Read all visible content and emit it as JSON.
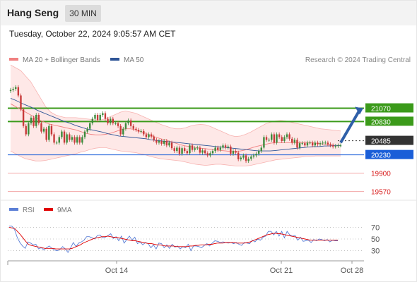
{
  "header": {
    "instrument": "Hang Seng",
    "timeframe": "30 MIN",
    "timestamp": "Tuesday, October 22, 2024 9:05:57 AM CET"
  },
  "legend": {
    "ma20_label": "MA 20 + Bollinger Bands",
    "ma20_color": "#f08080",
    "ma50_label": "MA 50",
    "ma50_color": "#2f5597",
    "copyright": "Research © 2024 Trading Central"
  },
  "rsi_legend": {
    "rsi_label": "RSI",
    "rsi_color": "#5b7fd6",
    "ma_label": "9MA",
    "ma_color": "#e00000"
  },
  "colors": {
    "resistance": "#3b9a1a",
    "pivot": "#1a5ed8",
    "support": "#d81e1e",
    "current": "#333333",
    "candle_up": "#3b8a3b",
    "candle_down": "#c83a3a"
  },
  "chart_data": [
    {
      "type": "candlestick",
      "instrument": "Hang Seng",
      "timeframe": "30 MIN",
      "x_tick_labels": [
        "Oct 14",
        "Oct 21",
        "Oct 28"
      ],
      "ylim": [
        19400,
        21750
      ],
      "close": [
        21400,
        21420,
        21450,
        21300,
        21050,
        20750,
        20600,
        20800,
        20900,
        20750,
        20950,
        20800,
        20650,
        20700,
        20500,
        20750,
        20600,
        20450,
        20450,
        20550,
        20650,
        20450,
        20600,
        20500,
        20550,
        20450,
        20550,
        20450,
        20550,
        20650,
        20700,
        20800,
        20880,
        20950,
        20860,
        20950,
        20980,
        20880,
        20800,
        20880,
        20800,
        20800,
        20750,
        20600,
        20700,
        20800,
        20850,
        20750,
        20700,
        20680,
        20650,
        20660,
        20600,
        20550,
        20600,
        20560,
        20500,
        20450,
        20480,
        20430,
        20480,
        20400,
        20450,
        20350,
        20300,
        20360,
        20250,
        20350,
        20300,
        20260,
        20400,
        20320,
        20350,
        20360,
        20270,
        20310,
        20260,
        20220,
        20260,
        20300,
        20360,
        20320,
        20360,
        20400,
        20360,
        20380,
        20250,
        20300,
        20270,
        20150,
        20180,
        20220,
        20120,
        20160,
        20200,
        20220,
        20250,
        20300,
        20360,
        20550,
        20500,
        20500,
        20600,
        20450,
        20600,
        20550,
        20480,
        20550,
        20600,
        20520,
        20450,
        20500,
        20360,
        20440,
        20440,
        20400,
        20450,
        20450,
        20400,
        20450,
        20420,
        20440,
        20450,
        20450,
        20420,
        20400,
        20380,
        20390,
        20400,
        20400
      ],
      "ma20": [
        21150,
        21100,
        21050,
        21000,
        20950,
        20900,
        20850,
        20810,
        20780,
        20760,
        20740,
        20720,
        20700,
        20680,
        20650,
        20620,
        20600,
        20590,
        20590,
        20600,
        20620,
        20650,
        20680,
        20700,
        20700,
        20680,
        20650,
        20620,
        20580,
        20550,
        20520,
        20500,
        20470,
        20440,
        20410,
        20390,
        20380,
        20360,
        20350,
        20340,
        20330,
        20320,
        20310,
        20300,
        20290,
        20290,
        20300,
        20320,
        20350,
        20380,
        20400,
        20420,
        20440,
        20450,
        20450,
        20450,
        20450,
        20450,
        20450,
        20450,
        20450,
        20440,
        20430,
        20420,
        20410,
        20400,
        20400
      ],
      "ma50": [
        21250,
        21210,
        21160,
        21120,
        21080,
        21030,
        20990,
        20950,
        20910,
        20870,
        20830,
        20800,
        20760,
        20730,
        20700,
        20680,
        20660,
        20640,
        20610,
        20590,
        20570,
        20560,
        20550,
        20540,
        20530,
        20520,
        20500,
        20490,
        20480,
        20470,
        20460,
        20450,
        20440,
        20430,
        20420,
        20410,
        20400,
        20390,
        20380,
        20370,
        20360,
        20350,
        20340,
        20330,
        20320,
        20310,
        20300,
        20300,
        20300,
        20310,
        20320,
        20330,
        20340,
        20350,
        20360,
        20370,
        20380,
        20380,
        20390,
        20390,
        20400,
        20400
      ],
      "bb_upper": [
        21850,
        21800,
        21750,
        21650,
        21550,
        21400,
        21250,
        21100,
        21000,
        20950,
        20920,
        20900,
        20900,
        20900,
        20890,
        20880,
        20870,
        20860,
        20860,
        20880,
        20920,
        20960,
        21000,
        21020,
        21000,
        20980,
        20940,
        20900,
        20860,
        20820,
        20780,
        20750,
        20720,
        20700,
        20700,
        20720,
        20750,
        20770,
        20780,
        20770,
        20740,
        20700,
        20660,
        20620,
        20580,
        20560,
        20570,
        20600,
        20640,
        20690,
        20740,
        20790,
        20820,
        20840,
        20850,
        20840,
        20820,
        20800,
        20780,
        20760,
        20740,
        20720,
        20700,
        20690,
        20680,
        20670,
        20660
      ],
      "bb_lower": [
        20300,
        20250,
        20200,
        20160,
        20140,
        20120,
        20120,
        20130,
        20150,
        20170,
        20190,
        20210,
        20230,
        20250,
        20280,
        20300,
        20330,
        20350,
        20360,
        20360,
        20340,
        20320,
        20300,
        20290,
        20280,
        20270,
        20250,
        20230,
        20200,
        20180,
        20160,
        20150,
        20140,
        20130,
        20120,
        20100,
        20080,
        20060,
        20050,
        20040,
        20050,
        20060,
        20060,
        20050,
        20040,
        20030,
        20030,
        20030,
        20040,
        20060,
        20080,
        20100,
        20120,
        20140,
        20150,
        20160,
        20170,
        20180,
        20190,
        20200,
        20200,
        20210,
        20210,
        20210,
        20210,
        20210,
        20210
      ],
      "levels": [
        {
          "label": "21070",
          "value": 21070,
          "kind": "resistance"
        },
        {
          "label": "20830",
          "value": 20830,
          "kind": "resistance"
        },
        {
          "label": "20485",
          "value": 20485,
          "kind": "current"
        },
        {
          "label": "20230",
          "value": 20230,
          "kind": "pivot"
        },
        {
          "label": "19900",
          "value": 19900,
          "kind": "support"
        },
        {
          "label": "19570",
          "value": 19570,
          "kind": "support"
        }
      ],
      "forecast_arrow": {
        "from": 20450,
        "to": 21070,
        "direction": "up"
      }
    },
    {
      "type": "line",
      "name": "RSI",
      "ylim": [
        15,
        85
      ],
      "y_tick_labels": [
        "70",
        "50",
        "30"
      ],
      "gridlines": [
        70,
        50,
        30
      ],
      "series": [
        {
          "name": "RSI",
          "values": [
            72,
            72,
            66,
            53,
            44,
            38,
            34,
            45,
            43,
            40,
            41,
            33,
            35,
            31,
            35,
            38,
            34,
            31,
            30,
            32,
            37,
            33,
            27,
            35,
            44,
            37,
            43,
            45,
            48,
            54,
            54,
            52,
            50,
            56,
            57,
            52,
            53,
            56,
            59,
            51,
            54,
            47,
            55,
            43,
            49,
            55,
            48,
            53,
            42,
            45,
            40,
            44,
            42,
            35,
            40,
            33,
            43,
            42,
            35,
            40,
            34,
            41,
            36,
            38,
            33,
            37,
            35,
            41,
            30,
            38,
            38,
            37,
            35,
            39,
            42,
            38,
            43,
            47,
            46,
            44,
            45,
            44,
            43,
            44,
            42,
            44,
            41,
            39,
            44,
            43,
            42,
            48,
            45,
            50,
            48,
            53,
            55,
            63,
            63,
            57,
            63,
            55,
            63,
            52,
            63,
            57,
            55,
            56,
            48,
            53,
            46,
            47,
            48,
            44,
            49,
            47,
            50,
            49,
            47,
            49,
            45,
            48,
            47,
            47
          ]
        },
        {
          "name": "9MA",
          "values": [
            70,
            69,
            68,
            63,
            58,
            52,
            46,
            41,
            39,
            38,
            37,
            36,
            35,
            34,
            34,
            34,
            34,
            33,
            33,
            33,
            33,
            33,
            33,
            34,
            36,
            38,
            40,
            43,
            45,
            47,
            49,
            51,
            52,
            53,
            54,
            54,
            55,
            54,
            53,
            53,
            52,
            51,
            50,
            49,
            48,
            47,
            47,
            46,
            45,
            44,
            43,
            42,
            42,
            41,
            40,
            40,
            39,
            38,
            38,
            38,
            38,
            37,
            37,
            37,
            37,
            37,
            38,
            38,
            39,
            39,
            40,
            40,
            40,
            41,
            41,
            42,
            43,
            43,
            43,
            44,
            44,
            44,
            44,
            43,
            43,
            43,
            43,
            44,
            45,
            47,
            49,
            51,
            53,
            55,
            57,
            58,
            59,
            60,
            59,
            59,
            58,
            57,
            56,
            55,
            54,
            53,
            52,
            51,
            50,
            49,
            48,
            48,
            48,
            48,
            48,
            48,
            48,
            48,
            48,
            48,
            48
          ]
        }
      ]
    }
  ]
}
